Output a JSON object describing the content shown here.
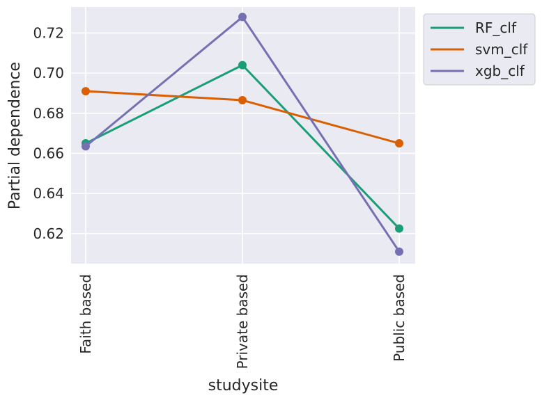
{
  "chart_data": {
    "type": "line",
    "title": "",
    "xlabel": "studysite",
    "ylabel": "Partial dependence",
    "categories": [
      "Faith based",
      "Private based",
      "Public based"
    ],
    "ylim": [
      0.605,
      0.733
    ],
    "yticks": [
      "0.62",
      "0.64",
      "0.66",
      "0.68",
      "0.70",
      "0.72"
    ],
    "grid": true,
    "legend_position": "outside-top-right",
    "series": [
      {
        "name": "RF_clf",
        "color": "#1b9e77",
        "values": [
          0.665,
          0.704,
          0.6225
        ]
      },
      {
        "name": "svm_clf",
        "color": "#d95f02",
        "values": [
          0.691,
          0.6865,
          0.665
        ]
      },
      {
        "name": "xgb_clf",
        "color": "#7570b3",
        "values": [
          0.6635,
          0.728,
          0.611
        ]
      }
    ]
  }
}
